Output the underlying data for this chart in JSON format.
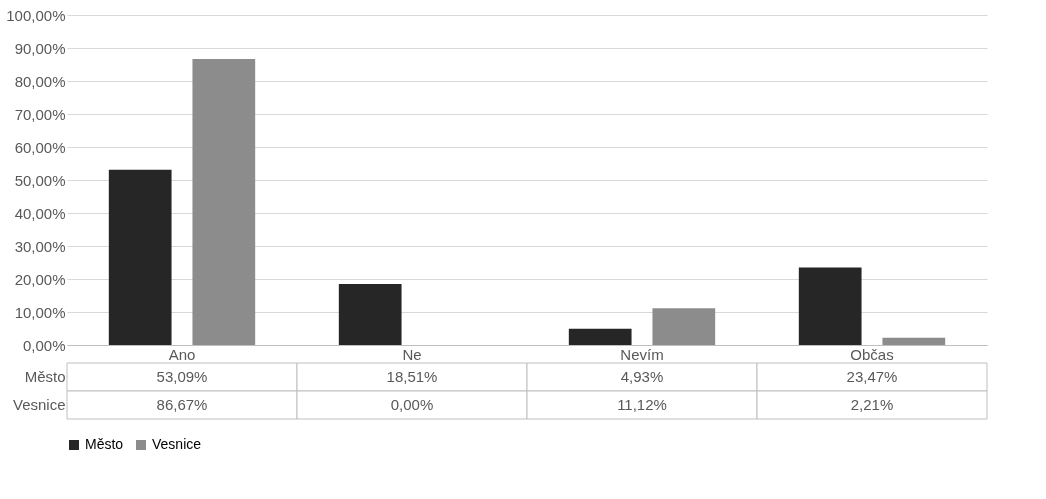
{
  "chart_data": {
    "type": "bar",
    "categories": [
      "Ano",
      "Ne",
      "Nevím",
      "Občas"
    ],
    "series": [
      {
        "name": "Město",
        "color": "#262626",
        "values": [
          53.09,
          18.51,
          4.93,
          23.47
        ],
        "value_labels": [
          "53,09%",
          "18,51%",
          "4,93%",
          "23,47%"
        ]
      },
      {
        "name": "Vesnice",
        "color": "#8c8c8c",
        "values": [
          86.67,
          0.0,
          11.12,
          2.21
        ],
        "value_labels": [
          "86,67%",
          "0,00%",
          "11,12%",
          "2,21%"
        ]
      }
    ],
    "ylim": [
      0,
      100
    ],
    "yticks": [
      {
        "value": 0,
        "label": "0,00%"
      },
      {
        "value": 10,
        "label": "10,00%"
      },
      {
        "value": 20,
        "label": "20,00%"
      },
      {
        "value": 30,
        "label": "30,00%"
      },
      {
        "value": 40,
        "label": "40,00%"
      },
      {
        "value": 50,
        "label": "50,00%"
      },
      {
        "value": 60,
        "label": "60,00%"
      },
      {
        "value": 70,
        "label": "70,00%"
      },
      {
        "value": 80,
        "label": "80,00%"
      },
      {
        "value": 90,
        "label": "90,00%"
      },
      {
        "value": 100,
        "label": "100,00%"
      }
    ],
    "grid": "y",
    "legend": "bottom"
  }
}
